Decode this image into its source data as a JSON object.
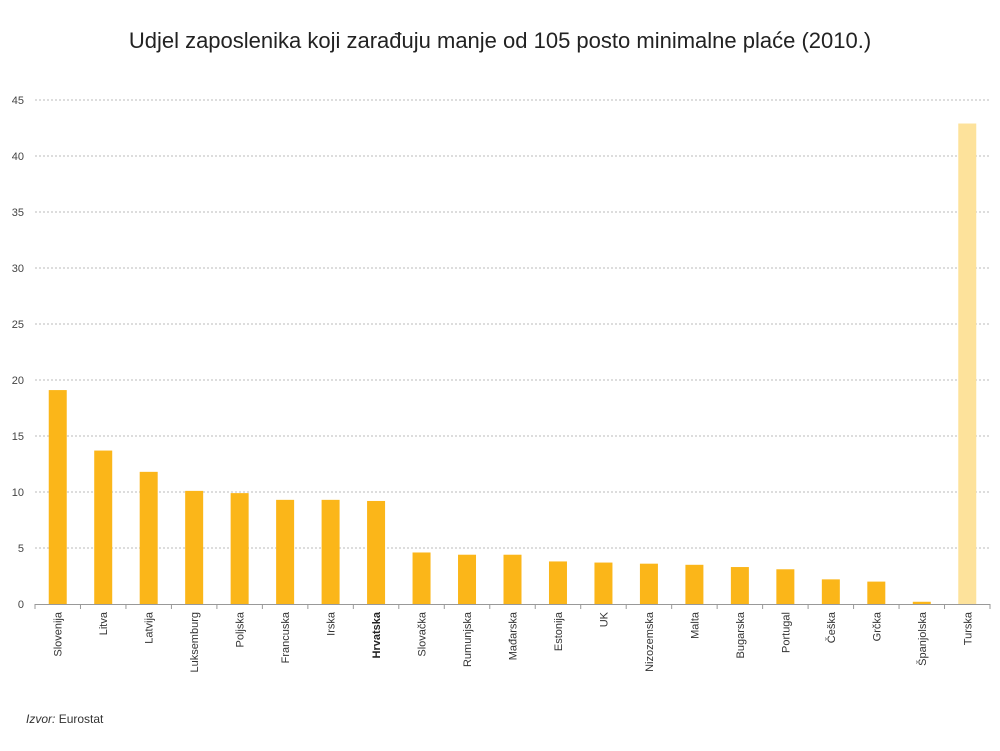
{
  "chart_data": {
    "type": "bar",
    "title": "Udjel zaposlenika koji zarađuju manje od 105 posto minimalne plaće (2010.)",
    "categories": [
      "Slovenija",
      "Litva",
      "Latvija",
      "Luksemburg",
      "Poljska",
      "Francuska",
      "Irska",
      "Hrvatska",
      "Slovačka",
      "Rumunjska",
      "Mađarska",
      "Estonija",
      "UK",
      "Nizozemska",
      "Malta",
      "Bugarska",
      "Portugal",
      "Češka",
      "Grčka",
      "Španjolska",
      "Turska"
    ],
    "values": [
      19.1,
      13.7,
      11.8,
      10.1,
      9.9,
      9.3,
      9.3,
      9.2,
      4.6,
      4.4,
      4.4,
      3.8,
      3.7,
      3.6,
      3.5,
      3.3,
      3.1,
      2.2,
      2.0,
      0.2,
      42.9
    ],
    "highlight_category": "Hrvatska",
    "ylim": [
      0,
      45
    ],
    "yticks": [
      0,
      5,
      10,
      15,
      20,
      25,
      30,
      35,
      40,
      45
    ],
    "grid": true,
    "colors": {
      "bar": "#FBB619",
      "bar_faded": "#FDE29B",
      "grid": "#BBBBBB",
      "axis": "#999999"
    }
  },
  "source": {
    "label": "Izvor:",
    "value": "Eurostat"
  }
}
